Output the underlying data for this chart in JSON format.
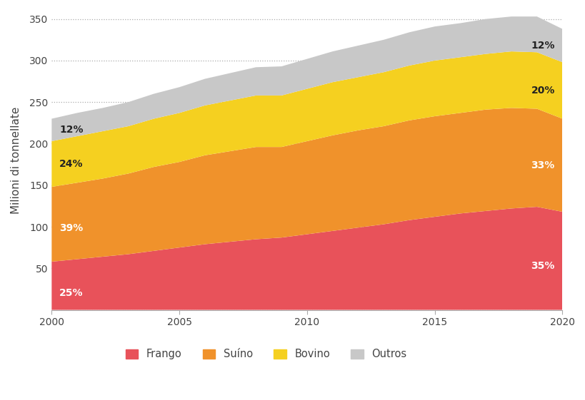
{
  "years": [
    2000,
    2001,
    2002,
    2003,
    2004,
    2005,
    2006,
    2007,
    2008,
    2009,
    2010,
    2011,
    2012,
    2013,
    2014,
    2015,
    2016,
    2017,
    2018,
    2019,
    2020
  ],
  "frango": [
    58,
    61,
    64,
    67,
    71,
    75,
    79,
    82,
    85,
    87,
    91,
    95,
    99,
    103,
    108,
    112,
    116,
    119,
    122,
    124,
    118
  ],
  "suino": [
    90,
    92,
    94,
    97,
    101,
    103,
    107,
    109,
    111,
    109,
    112,
    115,
    117,
    118,
    120,
    121,
    121,
    122,
    121,
    118,
    112
  ],
  "bovino": [
    55,
    56,
    57,
    57,
    58,
    59,
    60,
    61,
    62,
    62,
    63,
    64,
    64,
    65,
    66,
    67,
    67,
    67,
    68,
    68,
    68
  ],
  "outros": [
    27,
    28,
    28,
    29,
    30,
    31,
    32,
    33,
    34,
    35,
    36,
    37,
    38,
    39,
    40,
    41,
    41,
    42,
    42,
    43,
    40
  ],
  "colors": {
    "frango": "#E8525A",
    "suino": "#F0922B",
    "bovino": "#F5D020",
    "outros": "#C8C8C8"
  },
  "ylabel": "Milioni di tonnellate",
  "ylim": [
    0,
    360
  ],
  "yticks": [
    0,
    50,
    100,
    150,
    200,
    250,
    300,
    350
  ],
  "xticks": [
    2000,
    2005,
    2010,
    2015,
    2020
  ],
  "xlim": [
    2000,
    2020
  ],
  "legend_labels": [
    "Frango",
    "Suíno",
    "Bovino",
    "Outros"
  ],
  "pct_2000": {
    "frango": "25%",
    "suino": "39%",
    "bovino": "24%",
    "outros": "12%"
  },
  "pct_2020": {
    "frango": "35%",
    "suino": "33%",
    "bovino": "20%",
    "outros": "12%"
  },
  "pct_color_left": {
    "frango": "#FFFFFF",
    "suino": "#FFFFFF",
    "bovino": "#222222",
    "outros": "#222222"
  },
  "pct_color_right": {
    "frango": "#FFFFFF",
    "suino": "#FFFFFF",
    "bovino": "#222222",
    "outros": "#222222"
  },
  "background_color": "#FFFFFF",
  "grid_color": "#AAAAAA",
  "font_color": "#444444"
}
